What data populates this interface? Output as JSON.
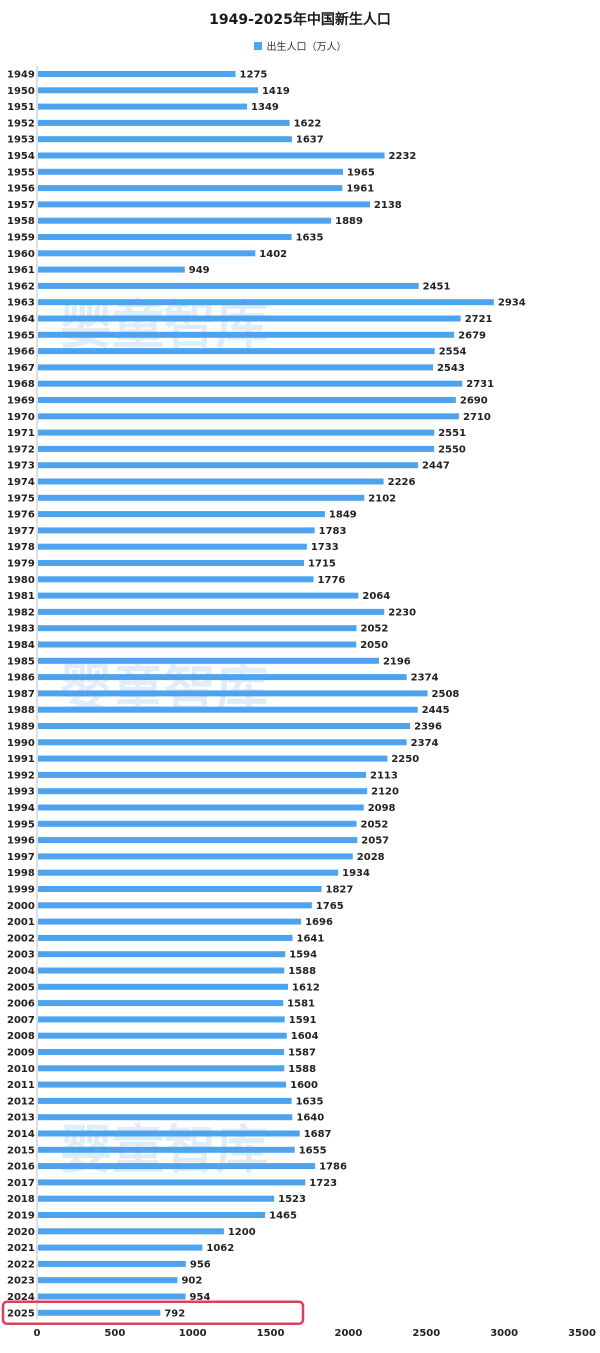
{
  "chart_data": {
    "type": "bar",
    "orientation": "horizontal",
    "title": "1949-2025年中国新生人口",
    "legend": [
      "出生人口（万人）"
    ],
    "legend_position": "top",
    "series": [
      {
        "name": "出生人口（万人）",
        "color": "#4da3ee",
        "values": [
          1275,
          1419,
          1349,
          1622,
          1637,
          2232,
          1965,
          1961,
          2138,
          1889,
          1635,
          1402,
          949,
          2451,
          2934,
          2721,
          2679,
          2554,
          2543,
          2731,
          2690,
          2710,
          2551,
          2550,
          2447,
          2226,
          2102,
          1849,
          1783,
          1733,
          1715,
          1776,
          2064,
          2230,
          2052,
          2050,
          2196,
          2374,
          2508,
          2445,
          2396,
          2374,
          2250,
          2113,
          2120,
          2098,
          2052,
          2057,
          2028,
          1934,
          1827,
          1765,
          1696,
          1641,
          1594,
          1588,
          1612,
          1581,
          1591,
          1604,
          1587,
          1588,
          1600,
          1635,
          1640,
          1687,
          1655,
          1786,
          1723,
          1523,
          1465,
          1200,
          1062,
          956,
          902,
          954,
          792
        ]
      }
    ],
    "categories": [
      "1949",
      "1950",
      "1951",
      "1952",
      "1953",
      "1954",
      "1955",
      "1956",
      "1957",
      "1958",
      "1959",
      "1960",
      "1961",
      "1962",
      "1963",
      "1964",
      "1965",
      "1966",
      "1967",
      "1968",
      "1969",
      "1970",
      "1971",
      "1972",
      "1973",
      "1974",
      "1975",
      "1976",
      "1977",
      "1978",
      "1979",
      "1980",
      "1981",
      "1982",
      "1983",
      "1984",
      "1985",
      "1986",
      "1987",
      "1988",
      "1989",
      "1990",
      "1991",
      "1992",
      "1993",
      "1994",
      "1995",
      "1996",
      "1997",
      "1998",
      "1999",
      "2000",
      "2001",
      "2002",
      "2003",
      "2004",
      "2005",
      "2006",
      "2007",
      "2008",
      "2009",
      "2010",
      "2011",
      "2012",
      "2013",
      "2014",
      "2015",
      "2016",
      "2017",
      "2018",
      "2019",
      "2020",
      "2021",
      "2022",
      "2023",
      "2024",
      "2025"
    ],
    "xlim": [
      0,
      3500
    ],
    "x_ticks": [
      0,
      500,
      1000,
      1500,
      2000,
      2500,
      3000,
      3500
    ],
    "grid": false,
    "highlight": {
      "category": "2025",
      "color": "#d9405a"
    }
  },
  "watermark": "婴童智库"
}
